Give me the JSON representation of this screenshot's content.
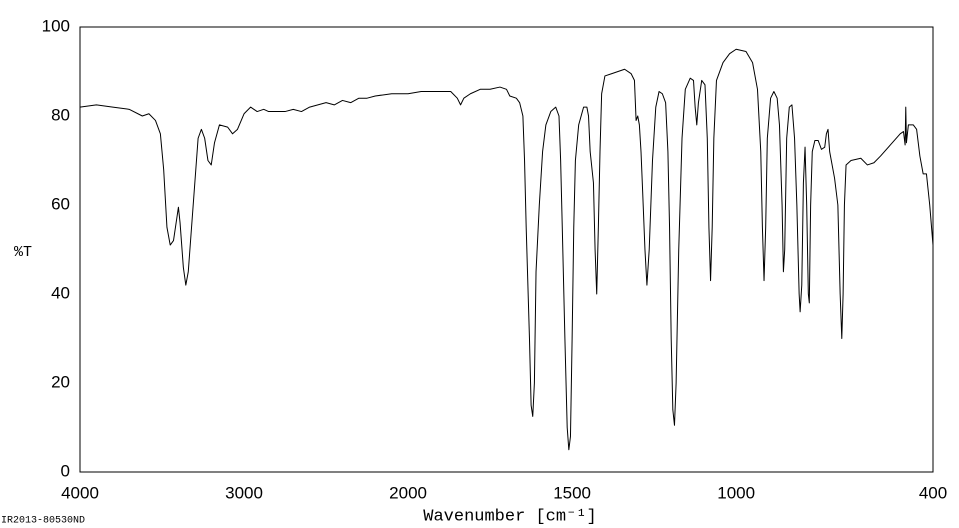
{
  "chart_data": {
    "type": "line",
    "ylabel": "%T",
    "xlabel": "Wavenumber [cm⁻¹]",
    "footnote": "IR2013-80530ND",
    "color": "#000000",
    "xlim": [
      4000,
      400
    ],
    "xscale_break": 2000,
    "xticks": [
      4000,
      3000,
      2000,
      1500,
      1000,
      400
    ],
    "ylim": [
      0,
      100
    ],
    "yticks": [
      0,
      20,
      40,
      60,
      80,
      100
    ],
    "x": [
      4000,
      3900,
      3800,
      3700,
      3620,
      3580,
      3540,
      3510,
      3490,
      3470,
      3450,
      3430,
      3410,
      3400,
      3390,
      3370,
      3355,
      3340,
      3320,
      3300,
      3280,
      3260,
      3240,
      3220,
      3200,
      3180,
      3150,
      3100,
      3070,
      3040,
      3000,
      2960,
      2920,
      2880,
      2850,
      2800,
      2750,
      2700,
      2650,
      2600,
      2550,
      2500,
      2450,
      2400,
      2350,
      2300,
      2250,
      2200,
      2100,
      2000,
      1960,
      1900,
      1870,
      1850,
      1840,
      1830,
      1810,
      1780,
      1750,
      1720,
      1700,
      1690,
      1670,
      1660,
      1650,
      1645,
      1640,
      1630,
      1625,
      1620,
      1615,
      1610,
      1600,
      1590,
      1580,
      1565,
      1550,
      1540,
      1535,
      1530,
      1522,
      1515,
      1510,
      1505,
      1500,
      1495,
      1490,
      1480,
      1465,
      1455,
      1450,
      1445,
      1435,
      1430,
      1425,
      1420,
      1415,
      1410,
      1400,
      1380,
      1360,
      1340,
      1320,
      1310,
      1305,
      1300,
      1295,
      1290,
      1285,
      1278,
      1272,
      1265,
      1255,
      1245,
      1235,
      1225,
      1215,
      1208,
      1203,
      1198,
      1193,
      1188,
      1183,
      1175,
      1165,
      1155,
      1140,
      1130,
      1125,
      1120,
      1115,
      1105,
      1095,
      1088,
      1083,
      1078,
      1073,
      1068,
      1060,
      1040,
      1020,
      1000,
      970,
      950,
      935,
      925,
      920,
      915,
      910,
      905,
      895,
      885,
      875,
      868,
      860,
      856,
      852,
      846,
      838,
      830,
      822,
      815,
      808,
      805,
      800,
      795,
      790,
      785,
      780,
      777,
      773,
      768,
      760,
      750,
      740,
      730,
      725,
      720,
      715,
      710,
      700,
      690,
      683,
      678,
      674,
      670,
      665,
      650,
      620,
      600,
      580,
      560,
      530,
      500,
      490,
      485,
      483,
      481,
      475,
      460,
      450,
      440,
      430,
      420,
      410,
      400
    ],
    "values": [
      82,
      82.5,
      82,
      81.5,
      80,
      80.5,
      79,
      76,
      68,
      55,
      51,
      52,
      57,
      59.5,
      56,
      46,
      42,
      45,
      55,
      65,
      75,
      77,
      75,
      70,
      69,
      74,
      78,
      77.5,
      76,
      77,
      80.5,
      82,
      81,
      81.5,
      81,
      81,
      81,
      81.5,
      81,
      82,
      82.5,
      83,
      82.5,
      83.5,
      83,
      84,
      84,
      84.5,
      85,
      85,
      85.5,
      85.5,
      85.5,
      84,
      82.5,
      84,
      85,
      86,
      86,
      86.5,
      86,
      84.5,
      84,
      83,
      80,
      70,
      55,
      30,
      15,
      12.5,
      20,
      45,
      60,
      72,
      78,
      81,
      82,
      80,
      70,
      55,
      30,
      10,
      5,
      8,
      30,
      55,
      70,
      78,
      82,
      82,
      80,
      72,
      65,
      50,
      40,
      55,
      72,
      85,
      89,
      89.5,
      90,
      90.5,
      89.5,
      88,
      79,
      80,
      78,
      72,
      63,
      50,
      42,
      50,
      70,
      82,
      85.5,
      85,
      83,
      72,
      55,
      30,
      14,
      10.5,
      20,
      50,
      75,
      86,
      88.5,
      88,
      82,
      78,
      83,
      88,
      87,
      75,
      55,
      43,
      55,
      75,
      88,
      92,
      94,
      95,
      94.5,
      92,
      86,
      72,
      55,
      43,
      55,
      75,
      84,
      85.5,
      84,
      78,
      60,
      45,
      50,
      75,
      82,
      82.5,
      75,
      60,
      40,
      36,
      42,
      65,
      73,
      60,
      40,
      38,
      60,
      72,
      74.5,
      74.5,
      72.5,
      73,
      76,
      77,
      72,
      70,
      66,
      60,
      40,
      30,
      40,
      60,
      69,
      70,
      70.5,
      69,
      69.5,
      71,
      73.5,
      76,
      76.5,
      73.5,
      82,
      74,
      78,
      78,
      77,
      71,
      67,
      67,
      60,
      51
    ]
  }
}
